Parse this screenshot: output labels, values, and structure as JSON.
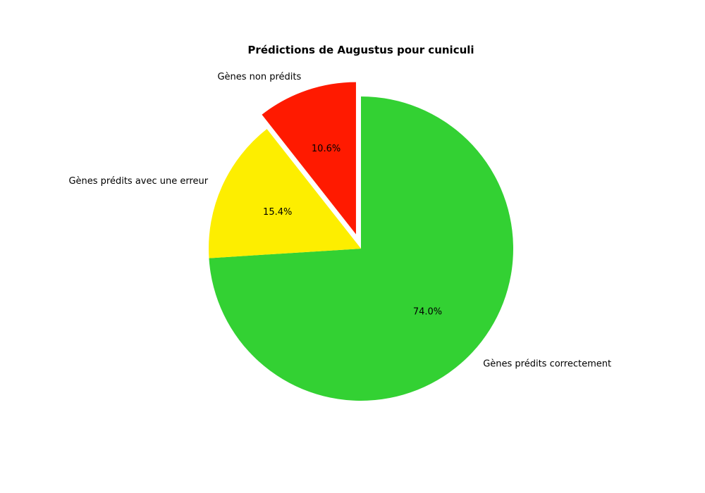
{
  "chart_data": {
    "type": "pie",
    "title": "Prédictions de Augustus pour cuniculi",
    "slices": [
      {
        "label": "Gènes prédits correctement",
        "value": 74.0,
        "pct_label": "74.0%",
        "color": "#33d133",
        "exploded": false
      },
      {
        "label": "Gènes prédits avec une erreur",
        "value": 15.4,
        "pct_label": "15.4%",
        "color": "#fdee00",
        "exploded": false
      },
      {
        "label": "Gènes non prédits",
        "value": 10.6,
        "pct_label": "10.6%",
        "color": "#ff1a00",
        "exploded": true
      }
    ],
    "start_angle_deg": 90,
    "direction": "clockwise",
    "legend": "none"
  }
}
